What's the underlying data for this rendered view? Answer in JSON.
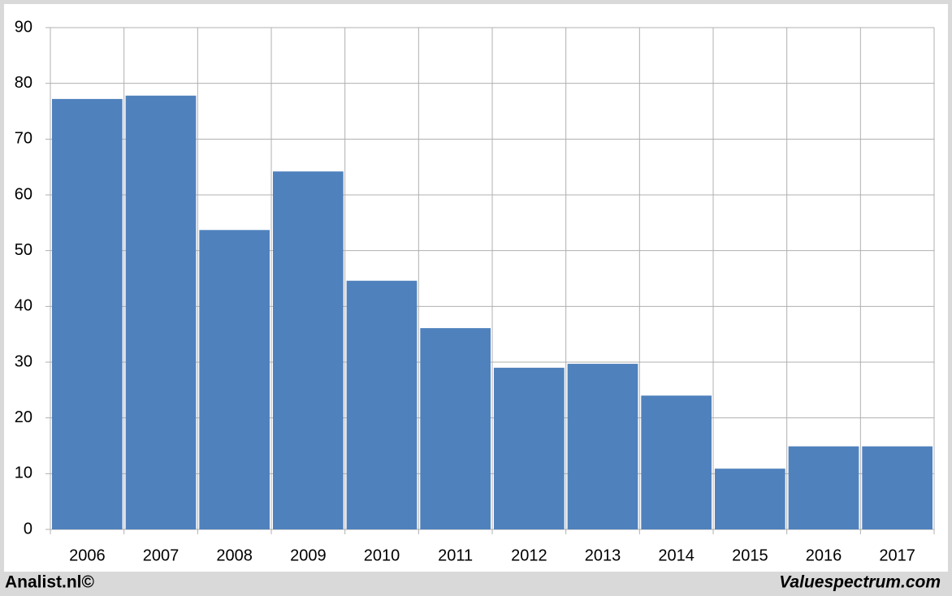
{
  "chart_data": {
    "type": "bar",
    "categories": [
      "2006",
      "2007",
      "2008",
      "2009",
      "2010",
      "2011",
      "2012",
      "2013",
      "2014",
      "2015",
      "2016",
      "2017"
    ],
    "values": [
      77.2,
      77.8,
      53.7,
      64.2,
      44.6,
      36.1,
      29.0,
      29.7,
      24.0,
      10.9,
      14.9,
      14.9
    ],
    "color": "#4f81bd",
    "ylim": [
      0,
      90
    ],
    "yticks": [
      0,
      10,
      20,
      30,
      40,
      50,
      60,
      70,
      80,
      90
    ],
    "grid": true
  },
  "footer": {
    "left": "Analist.nl©",
    "right": "Valuespectrum.com"
  }
}
